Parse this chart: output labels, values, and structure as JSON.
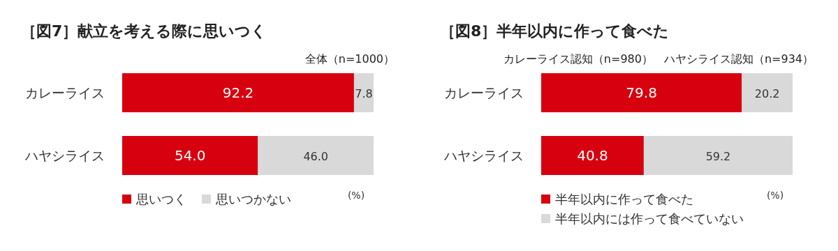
{
  "chart_data": [
    {
      "type": "bar",
      "orientation": "horizontal",
      "stacked": true,
      "title": "［図7］献立を考える際に思いつく",
      "subtitle": "全体（n=1000）",
      "categories": [
        "カレーライス",
        "ハヤシライス"
      ],
      "series": [
        {
          "name": "思いつく",
          "color": "#d7000f",
          "values": [
            92.2,
            54.0
          ],
          "value_labels": [
            "92.2",
            "54.0"
          ]
        },
        {
          "name": "思いつかない",
          "color": "#d9d9d9",
          "values": [
            7.8,
            46.0
          ],
          "value_labels": [
            "7.8",
            "46.0"
          ]
        }
      ],
      "annotations": [
        "(%)"
      ],
      "legend": "bottom",
      "grid": false
    },
    {
      "type": "bar",
      "orientation": "horizontal",
      "stacked": true,
      "title": "［図8］半年以内に作って食べた",
      "subtitle": "カレーライス認知（n=980）　ハヤシライス認知（n=934）",
      "categories": [
        "カレーライス",
        "ハヤシライス"
      ],
      "series": [
        {
          "name": "半年以内に作って食べた",
          "color": "#d7000f",
          "values": [
            79.8,
            40.8
          ],
          "value_labels": [
            "79.8",
            "40.8"
          ]
        },
        {
          "name": "半年以内には作って食べていない",
          "color": "#d9d9d9",
          "values": [
            20.2,
            59.2
          ],
          "value_labels": [
            "20.2",
            "59.2"
          ]
        }
      ],
      "annotations": [
        "(%)"
      ],
      "legend": "bottom",
      "grid": false
    }
  ]
}
